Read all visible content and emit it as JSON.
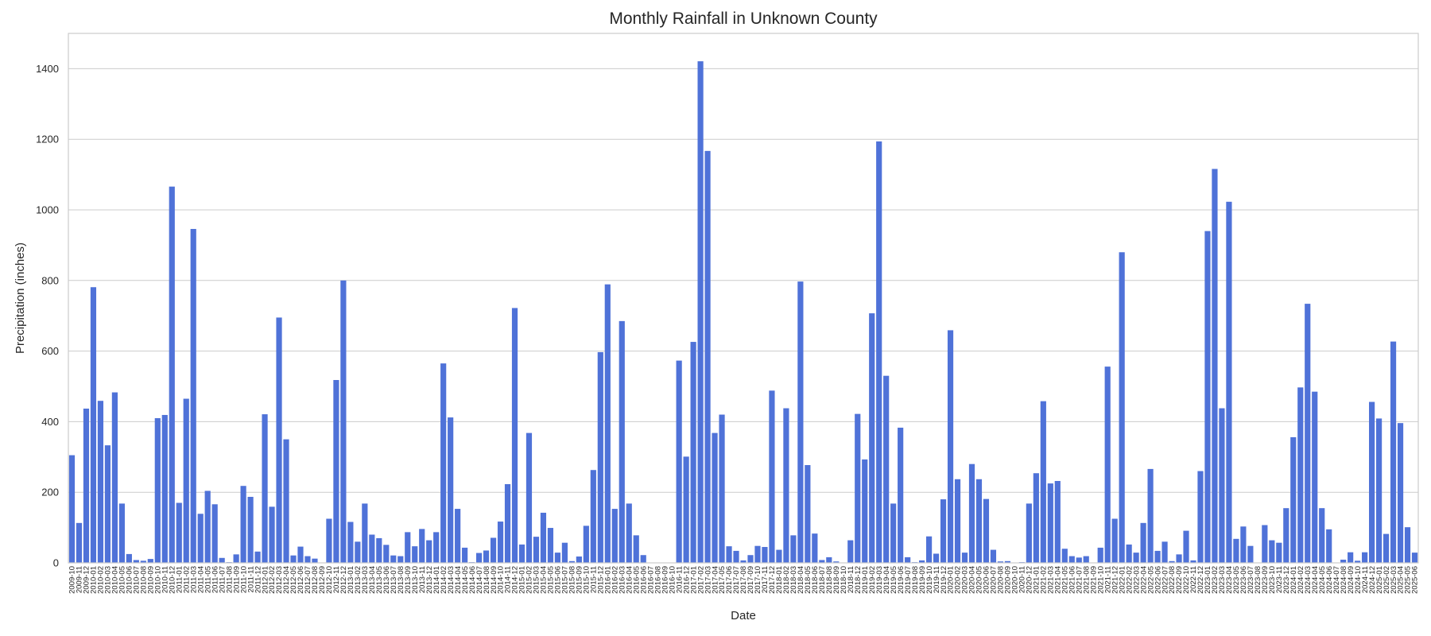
{
  "chart_data": {
    "type": "bar",
    "title": "Monthly Rainfall in Unknown County",
    "xlabel": "Date",
    "ylabel": "Precipitation (inches)",
    "ylim": [
      0,
      1500
    ],
    "yticks": [
      0,
      200,
      400,
      600,
      800,
      1000,
      1200,
      1400
    ],
    "grid": "horizontal",
    "color": "#4f72d8",
    "categories": [
      "2009-10",
      "2009-11",
      "2009-12",
      "2010-01",
      "2010-02",
      "2010-03",
      "2010-04",
      "2010-05",
      "2010-06",
      "2010-07",
      "2010-08",
      "2010-09",
      "2010-10",
      "2010-11",
      "2010-12",
      "2011-01",
      "2011-02",
      "2011-03",
      "2011-04",
      "2011-05",
      "2011-06",
      "2011-07",
      "2011-08",
      "2011-09",
      "2011-10",
      "2011-11",
      "2011-12",
      "2012-01",
      "2012-02",
      "2012-03",
      "2012-04",
      "2012-05",
      "2012-06",
      "2012-07",
      "2012-08",
      "2012-09",
      "2012-10",
      "2012-11",
      "2012-12",
      "2013-01",
      "2013-02",
      "2013-03",
      "2013-04",
      "2013-05",
      "2013-06",
      "2013-07",
      "2013-08",
      "2013-09",
      "2013-10",
      "2013-11",
      "2013-12",
      "2014-01",
      "2014-02",
      "2014-03",
      "2014-04",
      "2014-05",
      "2014-06",
      "2014-07",
      "2014-08",
      "2014-09",
      "2014-10",
      "2014-11",
      "2014-12",
      "2015-01",
      "2015-02",
      "2015-03",
      "2015-04",
      "2015-05",
      "2015-06",
      "2015-07",
      "2015-08",
      "2015-09",
      "2015-10",
      "2015-11",
      "2015-12",
      "2016-01",
      "2016-02",
      "2016-03",
      "2016-04",
      "2016-05",
      "2016-06",
      "2016-07",
      "2016-08",
      "2016-09",
      "2016-10",
      "2016-11",
      "2016-12",
      "2017-01",
      "2017-02",
      "2017-03",
      "2017-04",
      "2017-05",
      "2017-06",
      "2017-07",
      "2017-08",
      "2017-09",
      "2017-10",
      "2017-11",
      "2017-12",
      "2018-01",
      "2018-02",
      "2018-03",
      "2018-04",
      "2018-05",
      "2018-06",
      "2018-07",
      "2018-08",
      "2018-09",
      "2018-10",
      "2018-11",
      "2018-12",
      "2019-01",
      "2019-02",
      "2019-03",
      "2019-04",
      "2019-05",
      "2019-06",
      "2019-07",
      "2019-08",
      "2019-09",
      "2019-10",
      "2019-11",
      "2019-12",
      "2020-01",
      "2020-02",
      "2020-03",
      "2020-04",
      "2020-05",
      "2020-06",
      "2020-07",
      "2020-08",
      "2020-09",
      "2020-10",
      "2020-11",
      "2020-12",
      "2021-01",
      "2021-02",
      "2021-03",
      "2021-04",
      "2021-05",
      "2021-06",
      "2021-07",
      "2021-08",
      "2021-09",
      "2021-10",
      "2021-11",
      "2021-12",
      "2022-01",
      "2022-02",
      "2022-03",
      "2022-04",
      "2022-05",
      "2022-06",
      "2022-07",
      "2022-08",
      "2022-09",
      "2022-10",
      "2022-11",
      "2022-12",
      "2023-01",
      "2023-02",
      "2023-03",
      "2023-04",
      "2023-05",
      "2023-06",
      "2023-07",
      "2023-08",
      "2023-09",
      "2023-10",
      "2023-11",
      "2023-12",
      "2024-01",
      "2024-02",
      "2024-03",
      "2024-04",
      "2024-05",
      "2024-06",
      "2024-07",
      "2024-08",
      "2024-09",
      "2024-10",
      "2024-11",
      "2024-12",
      "2025-01",
      "2025-02",
      "2025-03",
      "2025-04",
      "2025-05",
      "2025-06"
    ],
    "values": [
      305,
      113,
      437,
      781,
      459,
      333,
      483,
      168,
      25,
      8,
      6,
      11,
      410,
      419,
      1066,
      170,
      465,
      946,
      139,
      204,
      166,
      14,
      2,
      24,
      218,
      187,
      32,
      421,
      159,
      695,
      350,
      21,
      46,
      19,
      12,
      0,
      125,
      518,
      800,
      116,
      60,
      168,
      80,
      70,
      51,
      21,
      19,
      87,
      47,
      96,
      64,
      87,
      565,
      412,
      153,
      43,
      2,
      28,
      35,
      71,
      117,
      223,
      722,
      52,
      368,
      74,
      142,
      99,
      29,
      57,
      5,
      18,
      105,
      263,
      597,
      789,
      153,
      685,
      168,
      78,
      22,
      0,
      0,
      0,
      0,
      573,
      301,
      626,
      1421,
      1167,
      368,
      420,
      47,
      34,
      7,
      22,
      48,
      45,
      488,
      37,
      438,
      78,
      797,
      277,
      83,
      8,
      16,
      4,
      1,
      64,
      422,
      293,
      707,
      1194,
      530,
      168,
      383,
      16,
      2,
      7,
      75,
      26,
      180,
      659,
      237,
      29,
      280,
      237,
      181,
      37,
      4,
      5,
      1,
      2,
      168,
      254,
      458,
      225,
      232,
      40,
      19,
      15,
      19,
      0,
      43,
      556,
      125,
      880,
      52,
      29,
      113,
      266,
      34,
      60,
      5,
      24,
      91,
      7,
      260,
      940,
      1116,
      438,
      1023,
      68,
      103,
      48,
      1,
      107,
      64,
      57,
      155,
      356,
      497,
      734,
      485,
      155,
      95,
      0,
      9,
      30,
      6,
      30,
      456,
      409,
      82,
      627,
      396,
      101,
      29
    ]
  }
}
